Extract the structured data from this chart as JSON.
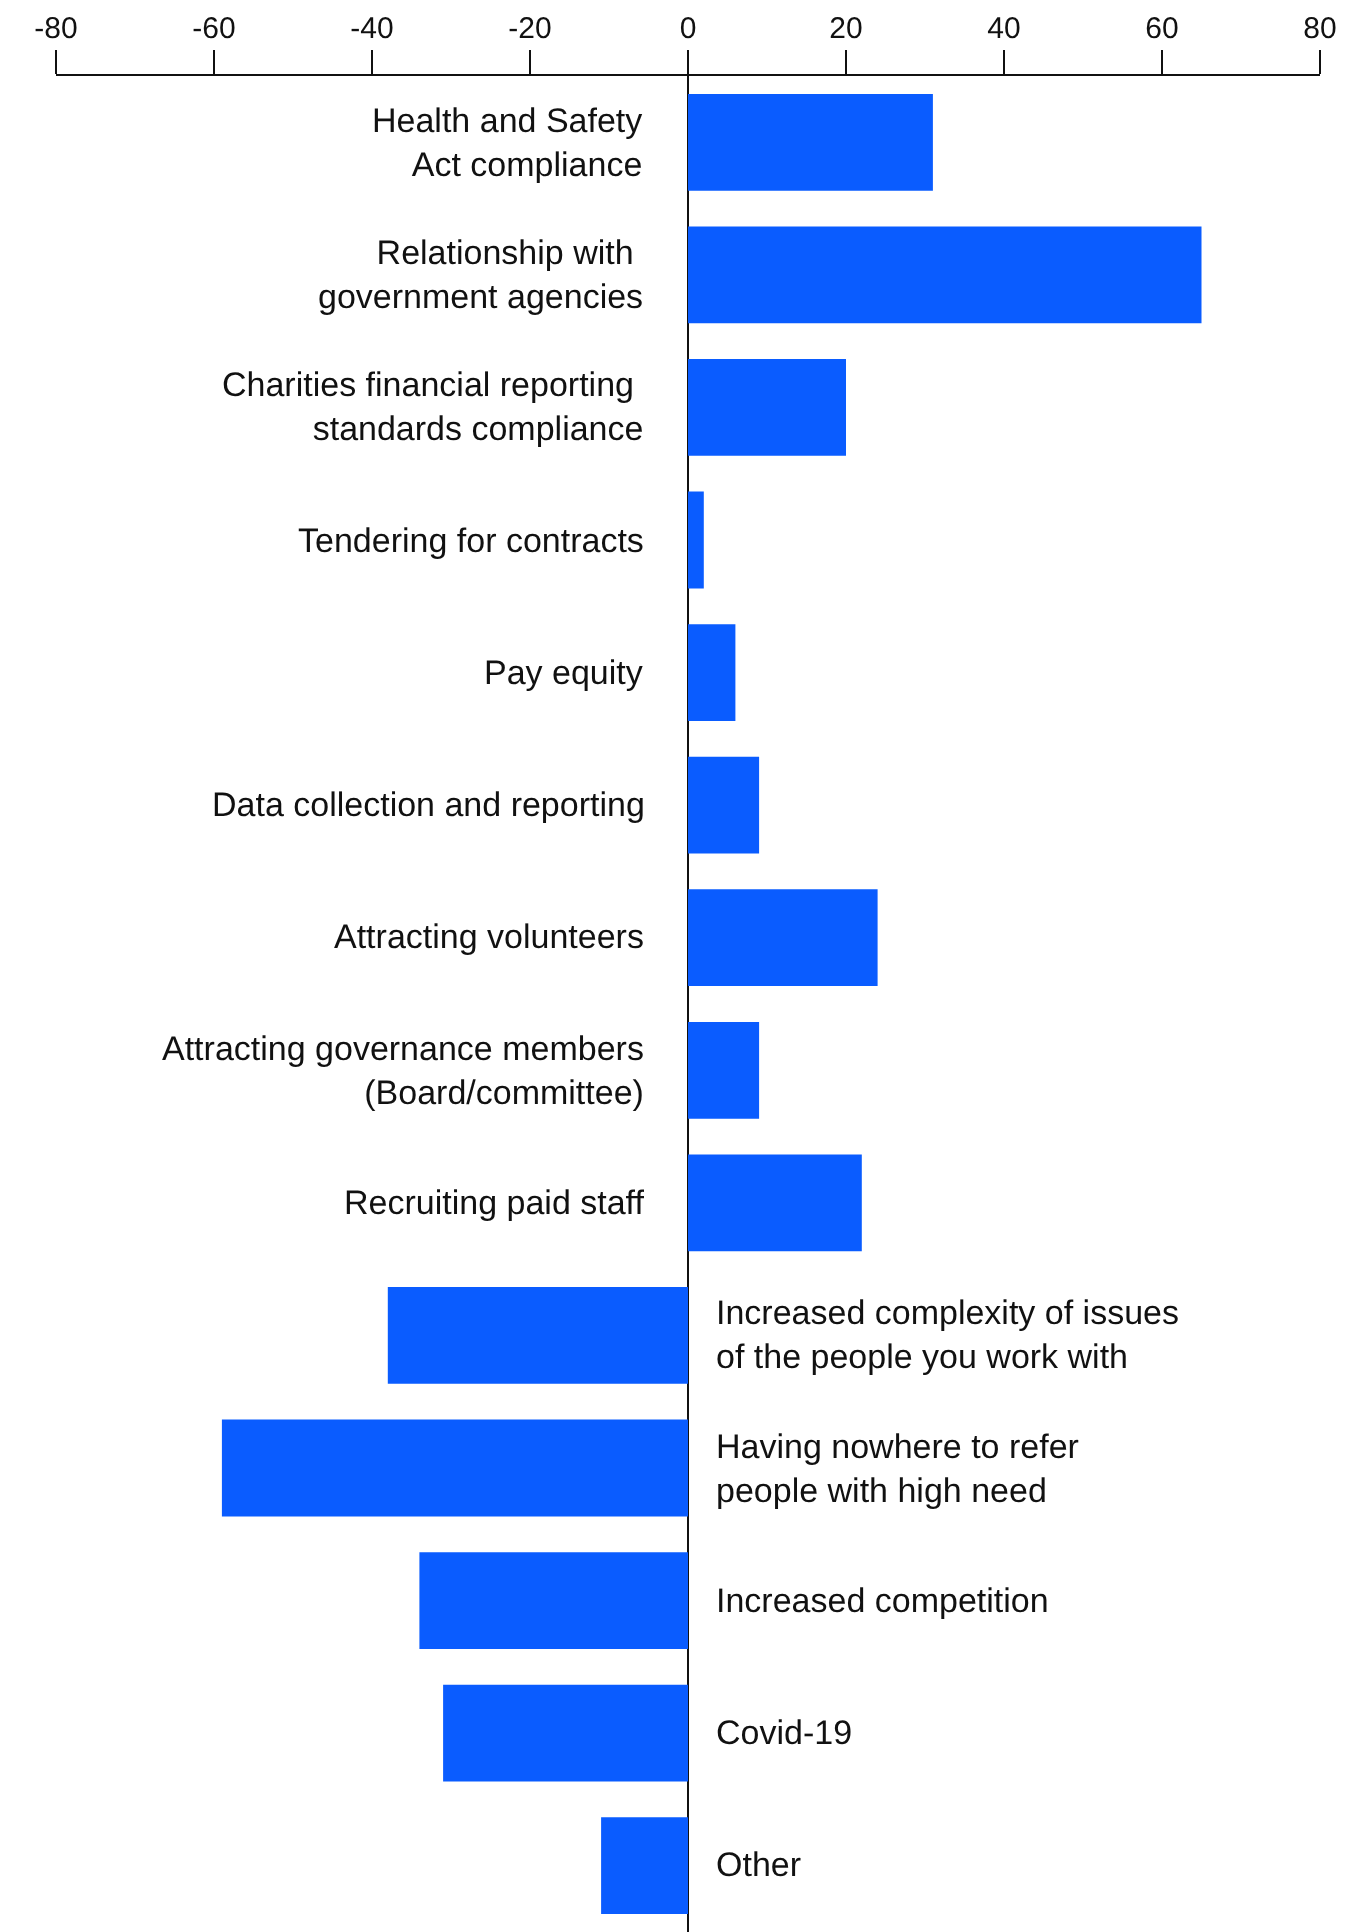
{
  "chart_data": {
    "type": "bar",
    "orientation": "horizontal",
    "categories": [
      "Health and Safety\nAct compliance",
      "Relationship with \ngovernment agencies",
      "Charities financial reporting \nstandards compliance",
      "Tendering for contracts",
      "Pay equity",
      "Data collection and reporting",
      "Attracting volunteers",
      "Attracting governance members\n(Board/committee)",
      "Recruiting paid staff",
      "Increased complexity of issues\nof the people you work with",
      "Having nowhere to refer\npeople with high need",
      "Increased competition",
      "Covid-19",
      "Other"
    ],
    "values": [
      31,
      65,
      20,
      2,
      6,
      9,
      24,
      9,
      22,
      -38,
      -59,
      -34,
      -31,
      -11
    ],
    "color": "#0a5cff",
    "xlim": [
      -80,
      80
    ],
    "xticks": [
      -80,
      -60,
      -40,
      -20,
      0,
      20,
      40,
      60,
      80
    ],
    "tick_labels": "x"
  }
}
